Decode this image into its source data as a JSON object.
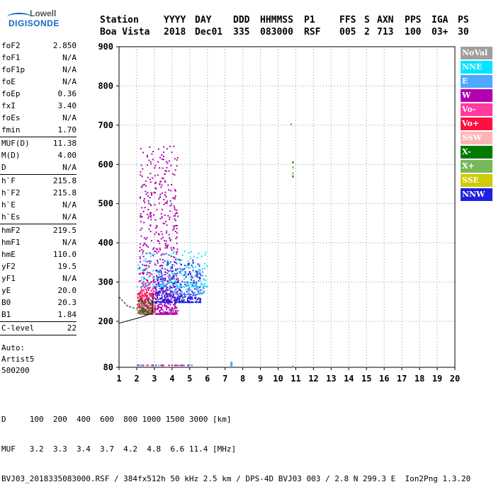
{
  "logo": {
    "line1": "Lowell",
    "line2": "DIGISONDE"
  },
  "header": {
    "labels": [
      "Station",
      "YYYY",
      "DAY",
      "DDD",
      "HHMMSS",
      "P1",
      "FFS",
      "S",
      "AXN",
      "PPS",
      "IGA",
      "PS"
    ],
    "values": [
      "Boa Vista",
      "2018",
      "Dec01",
      "335",
      "083000",
      "RSF",
      "005",
      "2",
      "713",
      "100",
      "03+",
      "30"
    ]
  },
  "params": [
    {
      "group": [
        {
          "k": "foF2",
          "v": "2.850"
        },
        {
          "k": "foF1",
          "v": "N/A"
        },
        {
          "k": "foF1p",
          "v": "N/A"
        },
        {
          "k": "foE",
          "v": "N/A"
        },
        {
          "k": "foEp",
          "v": "0.36"
        },
        {
          "k": "fxI",
          "v": "3.40"
        },
        {
          "k": "foEs",
          "v": "N/A"
        },
        {
          "k": "fmin",
          "v": "1.70"
        }
      ]
    },
    {
      "group": [
        {
          "k": "MUF(D)",
          "v": "11.38"
        },
        {
          "k": "M(D)",
          "v": "4.00"
        },
        {
          "k": "D",
          "v": "N/A"
        }
      ]
    },
    {
      "group": [
        {
          "k": "h`F",
          "v": "215.8"
        },
        {
          "k": "h`F2",
          "v": "215.8"
        },
        {
          "k": "h`E",
          "v": "N/A"
        },
        {
          "k": "h`Es",
          "v": "N/A"
        }
      ]
    },
    {
      "group": [
        {
          "k": "hmF2",
          "v": "219.5"
        },
        {
          "k": "hmF1",
          "v": "N/A"
        },
        {
          "k": "hmE",
          "v": "110.0"
        },
        {
          "k": "yF2",
          "v": "19.5"
        },
        {
          "k": "yF1",
          "v": "N/A"
        },
        {
          "k": "yE",
          "v": "20.0"
        },
        {
          "k": "B0",
          "v": "20.3"
        },
        {
          "k": "B1",
          "v": "1.84"
        }
      ]
    },
    {
      "group": [
        {
          "k": "C-level",
          "v": "22"
        }
      ]
    }
  ],
  "auto": {
    "line1": "Auto:",
    "line2": "Artist5",
    "line3": "500200"
  },
  "footer": {
    "d_row": "D     100  200  400  600  800 1000 1500 3000 [km]",
    "muf_row": "MUF   3.2  3.3  3.4  3.7  4.2  4.8  6.6 11.4 [MHz]",
    "info": "BVJ03_2018335083000.RSF / 384fx512h 50 kHz 2.5 km / DPS-4D BVJ03 003 / 2.8 N 299.3 E  Ion2Png 1.3.20"
  },
  "legend": [
    {
      "label": "NoVal",
      "color": "#9e9e9e"
    },
    {
      "label": "NNE",
      "color": "#00e5ff"
    },
    {
      "label": "E",
      "color": "#4fa8ff"
    },
    {
      "label": "W",
      "color": "#b000b0"
    },
    {
      "label": "Vo-",
      "color": "#ff3aa0"
    },
    {
      "label": "Vo+",
      "color": "#ff1040"
    },
    {
      "label": "SSW",
      "color": "#ffb4b4"
    },
    {
      "label": "X-",
      "color": "#007a00"
    },
    {
      "label": "X+",
      "color": "#77b858"
    },
    {
      "label": "SSE",
      "color": "#cccc00"
    },
    {
      "label": "NNW",
      "color": "#2020e0"
    }
  ],
  "chart_data": {
    "type": "scatter",
    "xlabel": "",
    "ylabel": "",
    "xlim": [
      1,
      20
    ],
    "ylim": [
      80,
      900
    ],
    "x_ticks": [
      1,
      2,
      3,
      4,
      5,
      6,
      7,
      8,
      9,
      10,
      11,
      12,
      13,
      14,
      15,
      16,
      17,
      18,
      19,
      20
    ],
    "y_ticks": [
      80,
      200,
      300,
      400,
      500,
      600,
      700,
      800,
      900
    ],
    "grid": true,
    "legend_position": "right",
    "clusters": [
      {
        "name": "W",
        "x_range": [
          2.1,
          4.3
        ],
        "y_range": [
          220,
          650
        ],
        "count": 700
      },
      {
        "name": "NNW",
        "x_range": [
          3.0,
          5.6
        ],
        "y_range": [
          250,
          360
        ],
        "count": 350
      },
      {
        "name": "NNE",
        "x_range": [
          2.0,
          6.0
        ],
        "y_range": [
          290,
          380
        ],
        "count": 150
      },
      {
        "name": "E",
        "x_range": [
          3.2,
          5.8
        ],
        "y_range": [
          270,
          340
        ],
        "count": 120
      },
      {
        "name": "Vo-",
        "x_range": [
          2.1,
          3.0
        ],
        "y_range": [
          225,
          300
        ],
        "count": 160
      },
      {
        "name": "Vo+",
        "x_range": [
          2.0,
          2.9
        ],
        "y_range": [
          222,
          280
        ],
        "count": 120
      },
      {
        "name": "X-",
        "x_range": [
          2.0,
          2.9
        ],
        "y_range": [
          225,
          260
        ],
        "count": 40
      },
      {
        "name": "X+",
        "x_range": [
          2.0,
          3.0
        ],
        "y_range": [
          220,
          250
        ],
        "count": 30
      }
    ],
    "isolated_points": [
      {
        "x": 10.7,
        "y": 705,
        "series": "X+"
      },
      {
        "x": 10.8,
        "y": 608,
        "series": "X-"
      },
      {
        "x": 10.8,
        "y": 595,
        "series": "X+"
      },
      {
        "x": 10.8,
        "y": 580,
        "series": "X+"
      },
      {
        "x": 10.8,
        "y": 572,
        "series": "X-"
      },
      {
        "x": 10.8,
        "y": 85,
        "series": "X+"
      }
    ],
    "bottom_strip": {
      "x_range": [
        1.9,
        5.2
      ],
      "y": 85
    },
    "bottom_strip_extra": [
      {
        "x": 7.3,
        "y_range": [
          80,
          95
        ],
        "series": "E"
      }
    ],
    "trace_line": [
      [
        1,
        195
      ],
      [
        2.2,
        210
      ],
      [
        2.85,
        220
      ],
      [
        2.95,
        270
      ]
    ]
  }
}
